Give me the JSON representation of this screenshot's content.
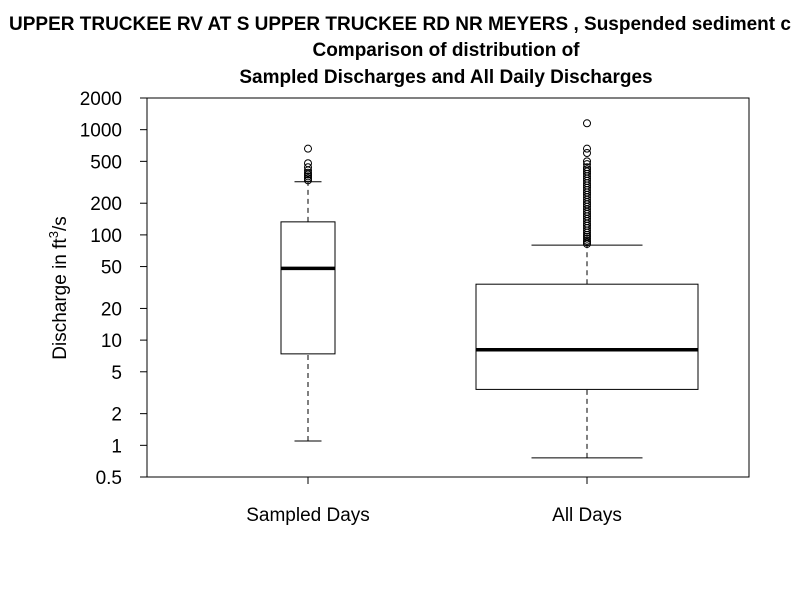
{
  "chart_data": {
    "type": "boxplot",
    "title_lines": [
      "UPPER TRUCKEE RV AT S UPPER TRUCKEE RD NR MEYERS , Suspended sediment c",
      "Comparison of distribution of",
      "Sampled Discharges and All Daily Discharges"
    ],
    "ylabel_main": "Discharge in ft",
    "ylabel_sup": "3",
    "ylabel_tail": "/s",
    "y_scale": "log",
    "ylim": [
      0.5,
      2000
    ],
    "y_ticks": [
      0.5,
      1,
      2,
      5,
      10,
      20,
      50,
      100,
      200,
      500,
      1000,
      2000
    ],
    "y_tick_labels": [
      "0.5",
      "1",
      "2",
      "5",
      "10",
      "20",
      "50",
      "100",
      "200",
      "500",
      "1000",
      "2000"
    ],
    "categories": [
      "Sampled Days",
      "All Days"
    ],
    "boxes": [
      {
        "category": "Sampled Days",
        "whisker_low": 1.1,
        "q1": 7.4,
        "median": 48,
        "q3": 133,
        "whisker_high": 320,
        "outliers": [
          330,
          345,
          360,
          375,
          390,
          410,
          440,
          480,
          660
        ]
      },
      {
        "category": "All Days",
        "whisker_low": 0.76,
        "q1": 3.4,
        "median": 8.1,
        "q3": 34,
        "whisker_high": 80,
        "outliers": [
          82,
          85,
          88,
          92,
          96,
          100,
          105,
          110,
          116,
          122,
          128,
          135,
          142,
          150,
          158,
          166,
          175,
          185,
          195,
          205,
          216,
          228,
          240,
          253,
          266,
          280,
          295,
          310,
          326,
          343,
          361,
          380,
          400,
          420,
          440,
          470,
          500,
          600,
          660,
          1150
        ]
      }
    ],
    "grid": false,
    "legend": "none"
  }
}
